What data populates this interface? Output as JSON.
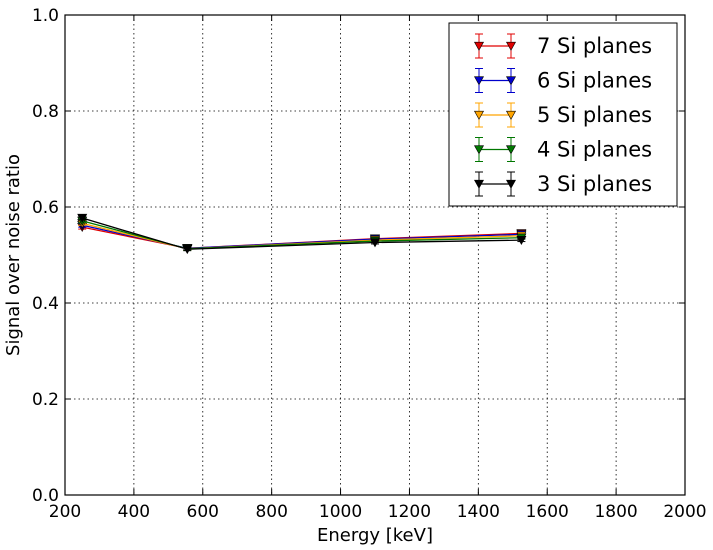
{
  "chart_data": {
    "type": "line",
    "title": "",
    "xlabel": "Energy [keV]",
    "ylabel": "Signal over noise ratio",
    "xlim": [
      200,
      2000
    ],
    "ylim": [
      0.0,
      1.0
    ],
    "x_ticks": [
      200,
      400,
      600,
      800,
      1000,
      1200,
      1400,
      1600,
      1800,
      2000
    ],
    "y_ticks": [
      "0.0",
      "0.2",
      "0.4",
      "0.6",
      "0.8",
      "1.0"
    ],
    "grid": true,
    "legend_position": "top-right",
    "x": [
      250,
      555,
      1100,
      1525
    ],
    "series": [
      {
        "name": "7 Si planes",
        "color": "#e00000",
        "marker": "triangle-down",
        "values": [
          0.558,
          0.514,
          0.534,
          0.545
        ],
        "errors": [
          0.004,
          0.003,
          0.003,
          0.003
        ]
      },
      {
        "name": "6 Si planes",
        "color": "#0000cc",
        "marker": "triangle-down",
        "values": [
          0.562,
          0.514,
          0.533,
          0.543
        ],
        "errors": [
          0.004,
          0.003,
          0.003,
          0.003
        ]
      },
      {
        "name": "5 Si planes",
        "color": "#ffa500",
        "marker": "triangle-down",
        "values": [
          0.566,
          0.513,
          0.531,
          0.54
        ],
        "errors": [
          0.004,
          0.003,
          0.003,
          0.003
        ]
      },
      {
        "name": "4 Si planes",
        "color": "#007700",
        "marker": "triangle-down",
        "values": [
          0.571,
          0.513,
          0.529,
          0.536
        ],
        "errors": [
          0.004,
          0.003,
          0.003,
          0.003
        ]
      },
      {
        "name": "3 Si planes",
        "color": "#000000",
        "marker": "triangle-down",
        "values": [
          0.577,
          0.512,
          0.526,
          0.531
        ],
        "errors": [
          0.004,
          0.003,
          0.003,
          0.003
        ]
      }
    ]
  }
}
